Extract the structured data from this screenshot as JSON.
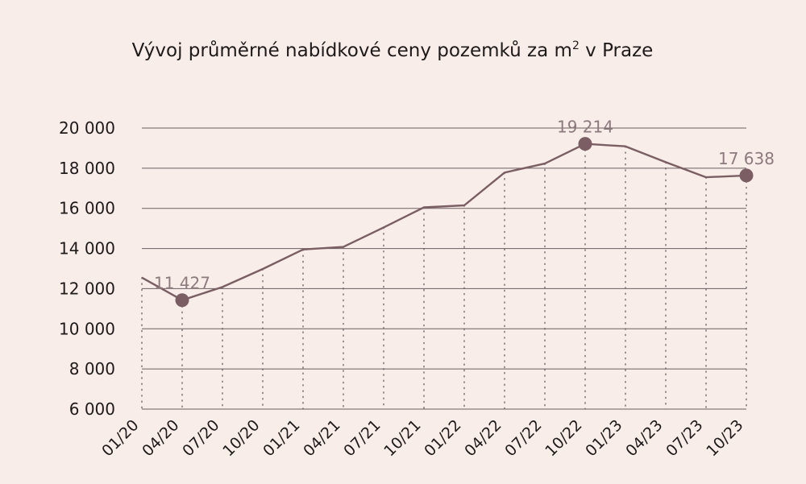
{
  "chart_data": {
    "type": "line",
    "title": "Vývoj průměrné nabídkové ceny pozemků za m",
    "title_superscript": "2",
    "title_suffix": " v Praze",
    "categories": [
      "01/20",
      "04/20",
      "07/20",
      "10/20",
      "01/21",
      "04/21",
      "07/21",
      "10/21",
      "01/22",
      "04/22",
      "07/22",
      "10/22",
      "01/23",
      "04/23",
      "07/23",
      "10/23"
    ],
    "series": [
      {
        "values": [
          12550,
          11427,
          12080,
          12980,
          13950,
          14080,
          15050,
          16050,
          16150,
          17780,
          18230,
          19214,
          19090,
          18300,
          17550,
          17638
        ]
      }
    ],
    "yticks": [
      6000,
      8000,
      10000,
      12000,
      14000,
      16000,
      18000,
      20000
    ],
    "ytick_labels": [
      "6 000",
      "8 000",
      "10 000",
      "12 000",
      "14 000",
      "16 000",
      "18 000",
      "20 000"
    ],
    "ylim": [
      6000,
      20000
    ],
    "xlabel": "",
    "ylabel": "",
    "grid": "horizontal",
    "highlighted_points": [
      {
        "category": "04/20",
        "value": 11427,
        "label": "11 427"
      },
      {
        "category": "10/22",
        "value": 19214,
        "label": "19 214"
      },
      {
        "category": "10/23",
        "value": 17638,
        "label": "17 638"
      }
    ],
    "colors": {
      "line": "#7a5e63",
      "grid": "#6b5e60",
      "background": "#f8ede9",
      "label": "#8d7a7f"
    }
  }
}
